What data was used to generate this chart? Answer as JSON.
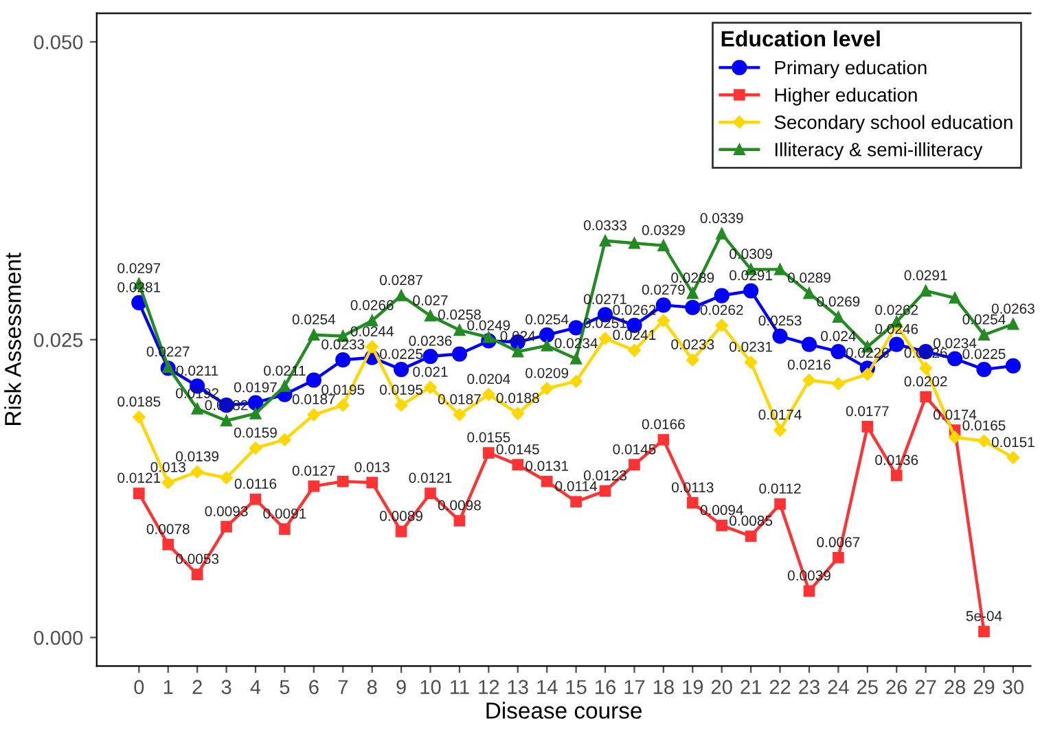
{
  "chart_data": {
    "type": "line",
    "xlabel": "Disease course",
    "ylabel": "Risk Assessment",
    "legend_title": "Education level",
    "legend": "top right",
    "grid": false,
    "x": [
      0,
      1,
      2,
      3,
      4,
      5,
      6,
      7,
      8,
      9,
      10,
      11,
      12,
      13,
      14,
      15,
      16,
      17,
      18,
      19,
      20,
      21,
      22,
      23,
      24,
      25,
      26,
      27,
      28,
      29,
      30
    ],
    "xlim": [
      -1.45,
      30.6
    ],
    "xticks": [
      0,
      1,
      2,
      3,
      4,
      5,
      6,
      7,
      8,
      9,
      10,
      11,
      12,
      13,
      14,
      15,
      16,
      17,
      18,
      19,
      20,
      21,
      22,
      23,
      24,
      25,
      26,
      27,
      28,
      29,
      30
    ],
    "ylim": [
      -0.0024,
      0.0524
    ],
    "yticks": [
      {
        "value": 0,
        "label": "0.000"
      },
      {
        "value": 0.025,
        "label": "0.025"
      },
      {
        "value": 0.05,
        "label": "0.050"
      }
    ],
    "series": [
      {
        "name": "Primary education",
        "color": "#0000ff",
        "marker": "circle",
        "values": [
          0.0281,
          0.0226,
          0.0211,
          0.0195,
          0.0197,
          0.0204,
          0.0216,
          0.0233,
          0.0235,
          0.0225,
          0.0236,
          0.0238,
          0.0249,
          0.0248,
          0.0254,
          0.026,
          0.0271,
          0.0262,
          0.0279,
          0.0277,
          0.0287,
          0.0291,
          0.0253,
          0.0246,
          0.024,
          0.0226,
          0.0246,
          0.024,
          0.0234,
          0.0225,
          0.0228
        ],
        "value_labels": [
          "0.0281",
          null,
          "0.0211",
          null,
          "0.0197",
          null,
          null,
          "0.0233",
          null,
          "0.0225",
          "0.0236",
          null,
          "0.0249",
          null,
          "0.0254",
          null,
          "0.0271",
          "0.0262",
          "0.0279",
          null,
          null,
          "0.0291",
          "0.0253",
          null,
          "0.024",
          "0.0226",
          "0.0246",
          null,
          "0.0234",
          "0.0225",
          null
        ]
      },
      {
        "name": "Higher education",
        "color": "#ff3333",
        "marker": "square",
        "values": [
          0.0121,
          0.0078,
          0.0053,
          0.0093,
          0.0116,
          0.0091,
          0.0127,
          0.0131,
          0.013,
          0.0089,
          0.0121,
          0.0098,
          0.0155,
          0.0145,
          0.0131,
          0.0114,
          0.0123,
          0.0145,
          0.0166,
          0.0113,
          0.0094,
          0.0085,
          0.0112,
          0.0039,
          0.0067,
          0.0177,
          0.0136,
          0.0202,
          0.0174,
          0.0005,
          null
        ],
        "value_labels": [
          "0.0121",
          "0.0078",
          "0.0053",
          "0.0093",
          "0.0116",
          "0.0091",
          "0.0127",
          null,
          "0.013",
          "0.0089",
          "0.0121",
          "0.0098",
          "0.0155",
          "0.0145",
          "0.0131",
          "0.0114",
          "0.0123",
          "0.0145",
          "0.0166",
          "0.0113",
          "0.0094",
          "0.0085",
          "0.0112",
          "0.0039",
          "0.0067",
          "0.0177",
          "0.0136",
          "0.0202",
          "0.0174",
          "5e-04",
          null
        ]
      },
      {
        "name": "Secondary school education",
        "color": "#ffd700",
        "marker": "diamond",
        "values": [
          0.0185,
          0.013,
          0.0139,
          0.0134,
          0.0159,
          0.0166,
          0.0187,
          0.0195,
          0.0244,
          0.0195,
          0.021,
          0.0187,
          0.0204,
          0.0188,
          0.0209,
          0.0215,
          0.0251,
          0.0241,
          0.0266,
          0.0233,
          0.0262,
          0.0231,
          0.0174,
          0.0216,
          0.0213,
          0.0221,
          0.0262,
          0.0226,
          0.0168,
          0.0165,
          0.0151
        ],
        "value_labels": [
          "0.0185",
          "0.013",
          "0.0139",
          null,
          "0.0159",
          null,
          "0.0187",
          "0.0195",
          "0.0244",
          "0.0195",
          "0.021",
          "0.0187",
          "0.0204",
          "0.0188",
          "0.0209",
          null,
          "0.0251",
          "0.0241",
          null,
          "0.0233",
          "0.0262",
          "0.0231",
          "0.0174",
          "0.0216",
          null,
          null,
          "0.0262",
          "0.0226",
          null,
          "0.0165",
          "0.0151"
        ]
      },
      {
        "name": "Illiteracy & semi-illiteracy",
        "color": "#228b22",
        "marker": "triangle",
        "values": [
          0.0297,
          0.0227,
          0.0192,
          0.0182,
          0.0188,
          0.0211,
          0.0254,
          0.0253,
          0.0266,
          0.0287,
          0.027,
          0.0258,
          0.0252,
          0.024,
          0.0245,
          0.0234,
          0.0333,
          0.0331,
          0.0329,
          0.0289,
          0.0339,
          0.0309,
          0.0309,
          0.0289,
          0.0269,
          0.0244,
          0.0265,
          0.0291,
          0.0285,
          0.0254,
          0.0263
        ],
        "value_labels": [
          "0.0297",
          "0.0227",
          "0.0192",
          "0.0182",
          null,
          "0.0211",
          "0.0254",
          null,
          "0.0266",
          "0.0287",
          "0.027",
          "0.0258",
          null,
          "0.024",
          null,
          "0.0234",
          "0.0333",
          null,
          "0.0329",
          "0.0289",
          "0.0339",
          "0.0309",
          null,
          "0.0289",
          "0.0269",
          null,
          null,
          "0.0291",
          null,
          "0.0254",
          "0.0263"
        ]
      }
    ]
  }
}
